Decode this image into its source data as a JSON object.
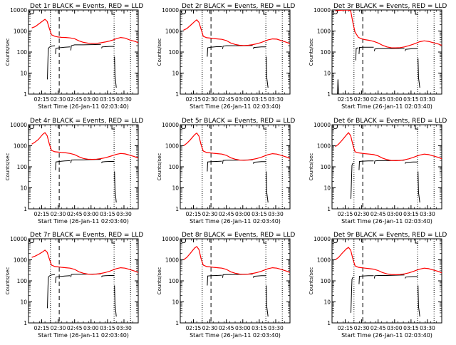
{
  "figure": {
    "xlabel": "Start Time (26-Jan-11 02:03:40)",
    "ylabel": "Counts/sec",
    "xticks": [
      "02:15",
      "02:30",
      "02:45",
      "03:00",
      "03:15",
      "03:30"
    ],
    "yticks": [
      "10000",
      "1000",
      "100",
      "10",
      "1"
    ],
    "colors": {
      "events": "#000000",
      "lld": "#ff0000"
    }
  },
  "chart_data": [
    {
      "type": "line",
      "title": "Det 1r BLACK = Events, RED = LLD",
      "ylim": [
        1,
        10000
      ],
      "yscale": "log",
      "x_minutes": [
        3,
        6,
        9,
        13,
        15,
        17,
        19,
        21,
        24,
        27,
        30,
        34,
        38,
        42,
        46,
        50,
        54,
        58,
        62,
        66,
        70,
        74,
        77,
        80,
        84,
        88,
        92,
        97,
        100
      ],
      "lld": [
        1400,
        1600,
        2100,
        3000,
        3600,
        2900,
        1300,
        660,
        560,
        520,
        500,
        490,
        470,
        430,
        340,
        290,
        265,
        258,
        260,
        275,
        300,
        335,
        375,
        430,
        490,
        460,
        380,
        320,
        280
      ],
      "events_segments": [
        {
          "x": [
            17.2,
            17.8,
            18.2,
            19.0,
            21.0,
            24.0
          ],
          "y": [
            5,
            60,
            150,
            170,
            190,
            200
          ]
        },
        {
          "x": [
            24.6,
            25.0,
            28,
            33,
            38
          ],
          "y": [
            80,
            150,
            160,
            170,
            175
          ]
        },
        {
          "x": [
            38.6,
            39.0,
            42,
            50,
            58,
            66
          ],
          "y": [
            120,
            200,
            220,
            220,
            225,
            230
          ]
        },
        {
          "x": [
            66.6,
            67,
            70,
            74,
            78
          ],
          "y": [
            150,
            175,
            180,
            185,
            185
          ]
        },
        {
          "x": [
            78.4,
            78.8,
            80
          ],
          "y": [
            60,
            8,
            2
          ]
        }
      ]
    },
    {
      "type": "line",
      "title": "Det 2r BLACK = Events, RED = LLD",
      "ylim": [
        1,
        10000
      ],
      "yscale": "log",
      "x_minutes": [
        3,
        6,
        9,
        13,
        15,
        17,
        19,
        21,
        24,
        27,
        30,
        34,
        38,
        42,
        46,
        50,
        54,
        58,
        62,
        66,
        70,
        74,
        77,
        80,
        84,
        88,
        92,
        97,
        100
      ],
      "lld": [
        1100,
        1300,
        1800,
        2800,
        3400,
        2600,
        1200,
        560,
        480,
        460,
        440,
        420,
        400,
        350,
        270,
        230,
        210,
        205,
        210,
        225,
        250,
        290,
        330,
        380,
        420,
        410,
        350,
        290,
        250
      ],
      "events_segments": [
        {
          "x": [
            24.6,
            25.0,
            28,
            33,
            38
          ],
          "y": [
            60,
            160,
            170,
            180,
            180
          ]
        },
        {
          "x": [
            38.6,
            39.0,
            42,
            50,
            58,
            66
          ],
          "y": [
            140,
            190,
            200,
            200,
            200,
            205
          ]
        },
        {
          "x": [
            66.6,
            67,
            70,
            74,
            78
          ],
          "y": [
            140,
            165,
            170,
            175,
            175
          ]
        },
        {
          "x": [
            78.4,
            78.8,
            80
          ],
          "y": [
            60,
            6,
            2
          ]
        }
      ]
    },
    {
      "type": "line",
      "title": "Det 3r BLACK = Events, RED = LLD",
      "ylim": [
        1,
        10000
      ],
      "yscale": "log",
      "x_minutes": [
        3,
        6,
        9,
        13,
        15,
        17,
        19,
        21,
        24,
        27,
        30,
        34,
        38,
        42,
        46,
        50,
        54,
        58,
        62,
        66,
        70,
        74,
        77,
        80,
        84,
        88,
        92,
        97,
        100
      ],
      "lld": [
        9000,
        9500,
        9800,
        9900,
        9900,
        9000,
        2500,
        880,
        500,
        420,
        390,
        360,
        320,
        270,
        210,
        175,
        160,
        158,
        162,
        175,
        200,
        235,
        270,
        310,
        340,
        320,
        280,
        240,
        210
      ],
      "events_segments": [
        {
          "x": [
            5,
            5.4,
            6.0
          ],
          "y": [
            1,
            5,
            1
          ]
        },
        {
          "x": [
            21.6,
            22.0,
            24
          ],
          "y": [
            40,
            150,
            160
          ]
        },
        {
          "x": [
            24.6,
            25.0,
            28,
            33,
            38
          ],
          "y": [
            80,
            165,
            170,
            170,
            170
          ]
        },
        {
          "x": [
            38.6,
            39.0,
            42,
            50,
            58,
            66
          ],
          "y": [
            110,
            140,
            145,
            145,
            148,
            150
          ]
        },
        {
          "x": [
            66.6,
            67,
            70,
            74,
            78
          ],
          "y": [
            110,
            135,
            140,
            145,
            145
          ]
        },
        {
          "x": [
            78.4,
            78.8,
            80
          ],
          "y": [
            50,
            6,
            2
          ]
        }
      ]
    },
    {
      "type": "line",
      "title": "Det 4r BLACK = Events, RED = LLD",
      "ylim": [
        1,
        10000
      ],
      "yscale": "log",
      "x_minutes": [
        3,
        6,
        9,
        13,
        15,
        17,
        19,
        21,
        24,
        27,
        30,
        34,
        38,
        42,
        46,
        50,
        54,
        58,
        62,
        66,
        70,
        74,
        77,
        80,
        84,
        88,
        92,
        97,
        100
      ],
      "lld": [
        1200,
        1500,
        2000,
        3500,
        4200,
        3000,
        1200,
        600,
        520,
        500,
        480,
        460,
        430,
        380,
        300,
        250,
        230,
        225,
        230,
        245,
        270,
        310,
        345,
        390,
        430,
        410,
        360,
        300,
        260
      ],
      "events_segments": [
        {
          "x": [
            24.6,
            25.0,
            28,
            33,
            38
          ],
          "y": [
            70,
            170,
            180,
            190,
            195
          ]
        },
        {
          "x": [
            38.6,
            39.0,
            42,
            50,
            58,
            66
          ],
          "y": [
            150,
            210,
            215,
            215,
            220,
            225
          ]
        },
        {
          "x": [
            66.6,
            67,
            70,
            74,
            78
          ],
          "y": [
            150,
            170,
            175,
            180,
            180
          ]
        },
        {
          "x": [
            78.4,
            78.8,
            80
          ],
          "y": [
            60,
            8,
            2
          ]
        }
      ]
    },
    {
      "type": "line",
      "title": "Det 5r BLACK = Events, RED = LLD",
      "ylim": [
        1,
        10000
      ],
      "yscale": "log",
      "x_minutes": [
        3,
        6,
        9,
        13,
        15,
        17,
        19,
        21,
        24,
        27,
        30,
        34,
        38,
        42,
        46,
        50,
        54,
        58,
        62,
        66,
        70,
        74,
        77,
        80,
        84,
        88,
        92,
        97,
        100
      ],
      "lld": [
        1000,
        1300,
        1900,
        3300,
        4000,
        2900,
        1100,
        560,
        480,
        460,
        440,
        420,
        400,
        350,
        270,
        230,
        210,
        205,
        210,
        225,
        250,
        290,
        330,
        380,
        420,
        400,
        350,
        290,
        250
      ],
      "events_segments": [
        {
          "x": [
            24.6,
            25.0,
            28,
            33,
            38
          ],
          "y": [
            60,
            170,
            175,
            180,
            185
          ]
        },
        {
          "x": [
            38.6,
            39.0,
            42,
            50,
            58,
            66
          ],
          "y": [
            140,
            200,
            205,
            205,
            210,
            215
          ]
        },
        {
          "x": [
            66.6,
            67,
            70,
            74,
            78
          ],
          "y": [
            140,
            165,
            170,
            175,
            175
          ]
        },
        {
          "x": [
            78.4,
            78.8,
            80
          ],
          "y": [
            60,
            6,
            2
          ]
        }
      ]
    },
    {
      "type": "line",
      "title": "Det 6r BLACK = Events, RED = LLD",
      "ylim": [
        1,
        10000
      ],
      "yscale": "log",
      "x_minutes": [
        3,
        6,
        9,
        13,
        15,
        17,
        19,
        21,
        24,
        27,
        30,
        34,
        38,
        42,
        46,
        50,
        54,
        58,
        62,
        66,
        70,
        74,
        77,
        80,
        84,
        88,
        92,
        97,
        100
      ],
      "lld": [
        900,
        1200,
        1800,
        3200,
        4200,
        3000,
        1100,
        520,
        460,
        440,
        420,
        400,
        380,
        330,
        260,
        220,
        200,
        195,
        200,
        215,
        240,
        280,
        320,
        360,
        400,
        380,
        330,
        280,
        240
      ],
      "events_segments": [
        {
          "x": [
            17.2,
            17.8,
            18.2,
            19.0
          ],
          "y": [
            3,
            30,
            120,
            150
          ]
        },
        {
          "x": [
            24.6,
            25.0,
            28,
            33,
            38
          ],
          "y": [
            70,
            180,
            185,
            190,
            190
          ]
        },
        {
          "x": [
            38.6,
            39.0,
            42,
            50,
            58,
            66
          ],
          "y": [
            140,
            190,
            195,
            195,
            200,
            205
          ]
        },
        {
          "x": [
            66.6,
            67,
            70,
            74,
            78
          ],
          "y": [
            140,
            160,
            165,
            170,
            170
          ]
        },
        {
          "x": [
            78.4,
            78.8,
            80
          ],
          "y": [
            60,
            6,
            2
          ]
        }
      ]
    },
    {
      "type": "line",
      "title": "Det 7r BLACK = Events, RED = LLD",
      "ylim": [
        1,
        10000
      ],
      "yscale": "log",
      "x_minutes": [
        3,
        6,
        9,
        13,
        15,
        17,
        19,
        21,
        24,
        27,
        30,
        34,
        38,
        42,
        46,
        50,
        54,
        58,
        62,
        66,
        70,
        74,
        77,
        80,
        84,
        88,
        92,
        97,
        100
      ],
      "lld": [
        1300,
        1500,
        1800,
        2400,
        2900,
        2300,
        1100,
        560,
        480,
        460,
        440,
        420,
        400,
        350,
        270,
        230,
        210,
        205,
        210,
        225,
        250,
        290,
        330,
        380,
        420,
        400,
        350,
        290,
        250
      ],
      "events_segments": [
        {
          "x": [
            17.2,
            17.8,
            18.2,
            19.0,
            21.0,
            24.0
          ],
          "y": [
            5,
            60,
            150,
            170,
            190,
            200
          ]
        },
        {
          "x": [
            24.6,
            25.0,
            28,
            33,
            38
          ],
          "y": [
            80,
            150,
            160,
            170,
            175
          ]
        },
        {
          "x": [
            38.6,
            39.0,
            42,
            50,
            58,
            66
          ],
          "y": [
            150,
            200,
            205,
            205,
            210,
            215
          ]
        },
        {
          "x": [
            66.6,
            67,
            70,
            74,
            78
          ],
          "y": [
            150,
            170,
            175,
            180,
            180
          ]
        },
        {
          "x": [
            78.4,
            78.8,
            80
          ],
          "y": [
            60,
            8,
            2
          ]
        }
      ]
    },
    {
      "type": "line",
      "title": "Det 8r BLACK = Events, RED = LLD",
      "ylim": [
        1,
        10000
      ],
      "yscale": "log",
      "x_minutes": [
        3,
        6,
        9,
        13,
        15,
        17,
        19,
        21,
        24,
        27,
        30,
        34,
        38,
        42,
        46,
        50,
        54,
        58,
        62,
        66,
        70,
        74,
        77,
        80,
        84,
        88,
        92,
        97,
        100
      ],
      "lld": [
        1000,
        1300,
        2000,
        3600,
        4300,
        3100,
        1100,
        560,
        480,
        460,
        440,
        420,
        400,
        350,
        270,
        230,
        210,
        205,
        210,
        225,
        250,
        290,
        330,
        380,
        420,
        400,
        350,
        290,
        250
      ],
      "events_segments": [
        {
          "x": [
            24.6,
            25.0,
            28,
            33,
            38
          ],
          "y": [
            60,
            170,
            175,
            180,
            185
          ]
        },
        {
          "x": [
            38.6,
            39.0,
            42,
            50,
            58,
            66
          ],
          "y": [
            140,
            195,
            200,
            200,
            205,
            210
          ]
        },
        {
          "x": [
            66.6,
            67,
            70,
            74,
            78
          ],
          "y": [
            140,
            165,
            170,
            175,
            175
          ]
        },
        {
          "x": [
            78.4,
            78.8,
            80
          ],
          "y": [
            60,
            6,
            2
          ]
        }
      ]
    },
    {
      "type": "line",
      "title": "Det 9r BLACK = Events, RED = LLD",
      "ylim": [
        1,
        10000
      ],
      "yscale": "log",
      "x_minutes": [
        3,
        6,
        9,
        13,
        15,
        17,
        19,
        21,
        24,
        27,
        30,
        34,
        38,
        42,
        46,
        50,
        54,
        58,
        62,
        66,
        70,
        74,
        77,
        80,
        84,
        88,
        92,
        97,
        100
      ],
      "lld": [
        1000,
        1300,
        2000,
        3300,
        3900,
        2900,
        1100,
        520,
        440,
        420,
        400,
        380,
        360,
        310,
        250,
        215,
        200,
        195,
        200,
        215,
        240,
        280,
        320,
        360,
        400,
        380,
        330,
        280,
        240
      ],
      "events_segments": [
        {
          "x": [
            17.2,
            17.8,
            18.2,
            19.0
          ],
          "y": [
            3,
            30,
            120,
            150
          ]
        },
        {
          "x": [
            24.6,
            25.0,
            28,
            33,
            38
          ],
          "y": [
            70,
            165,
            170,
            175,
            175
          ]
        },
        {
          "x": [
            38.6,
            39.0,
            42,
            50,
            58,
            66
          ],
          "y": [
            130,
            175,
            180,
            180,
            185,
            190
          ]
        },
        {
          "x": [
            66.6,
            67,
            70,
            74,
            78
          ],
          "y": [
            130,
            150,
            155,
            160,
            160
          ]
        },
        {
          "x": [
            78.4,
            78.8,
            80
          ],
          "y": [
            60,
            6,
            2
          ]
        }
      ]
    }
  ]
}
